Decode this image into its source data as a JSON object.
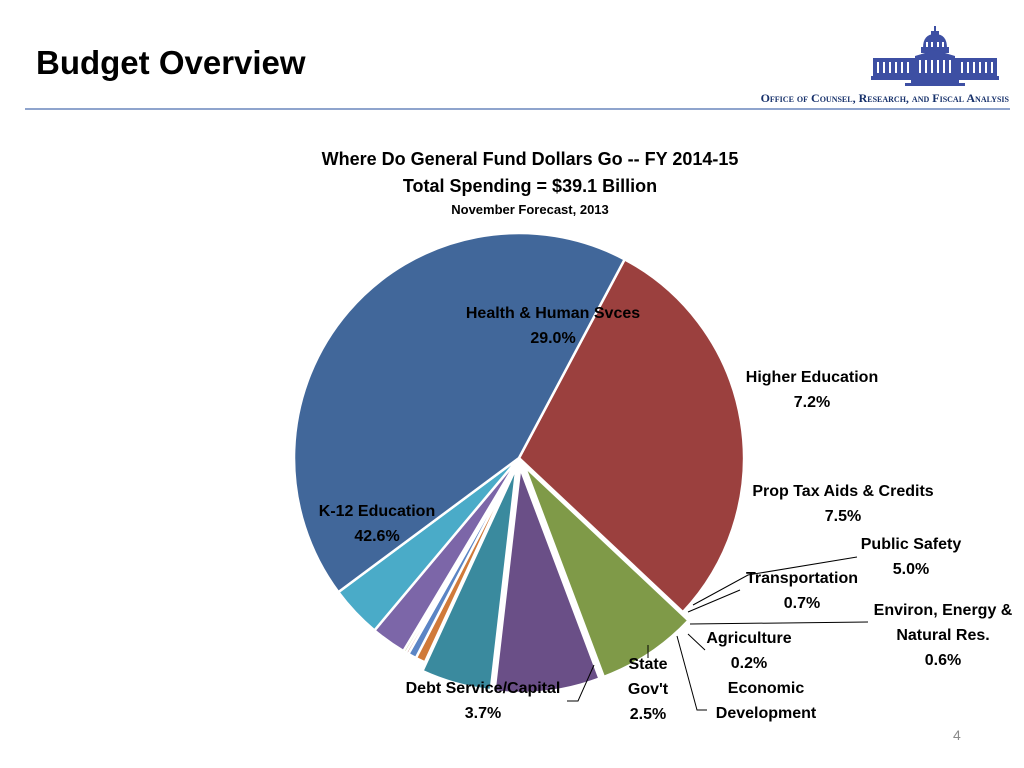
{
  "header": {
    "title": "Budget Overview",
    "office": "Office of Counsel, Research, and Fiscal Analysis",
    "logo_icon": "capitol-building-icon"
  },
  "page_number": "4",
  "chart_data": {
    "type": "pie",
    "title": "Where Do General Fund Dollars Go -- FY 2014-15",
    "subtitle": "Total Spending = $39.1 Billion",
    "note": "November Forecast, 2013",
    "slices": [
      {
        "name": "Health & Human Svces",
        "value": 29.0,
        "label": "29.0%",
        "color": "#9b403e"
      },
      {
        "name": "Higher Education",
        "value": 7.2,
        "label": "7.2%",
        "color": "#7f9a48"
      },
      {
        "name": "Prop Tax Aids & Credits",
        "value": 7.5,
        "label": "7.5%",
        "color": "#6a4f87"
      },
      {
        "name": "Public Safety",
        "value": 5.0,
        "label": "5.0%",
        "color": "#3a8a9e"
      },
      {
        "name": "Transportation",
        "value": 0.7,
        "label": "0.7%",
        "color": "#d07a3a"
      },
      {
        "name": "Environ, Energy & Natural Res.",
        "value": 0.6,
        "label": "0.6%",
        "color": "#5b85c5"
      },
      {
        "name": "Agriculture",
        "value": 0.2,
        "label": "0.2%",
        "color": "#9b403e"
      },
      {
        "name": "Economic Development",
        "value": 0.2,
        "label": "",
        "color": "#9ab858"
      },
      {
        "name": "State Gov't",
        "value": 2.5,
        "label": "2.5%",
        "color": "#7c66a8"
      },
      {
        "name": "Debt Service/Capital",
        "value": 3.7,
        "label": "3.7%",
        "color": "#4aabc8"
      },
      {
        "name": "K-12 Education",
        "value": 42.6,
        "label": "42.6%",
        "color": "#41679a"
      }
    ]
  }
}
